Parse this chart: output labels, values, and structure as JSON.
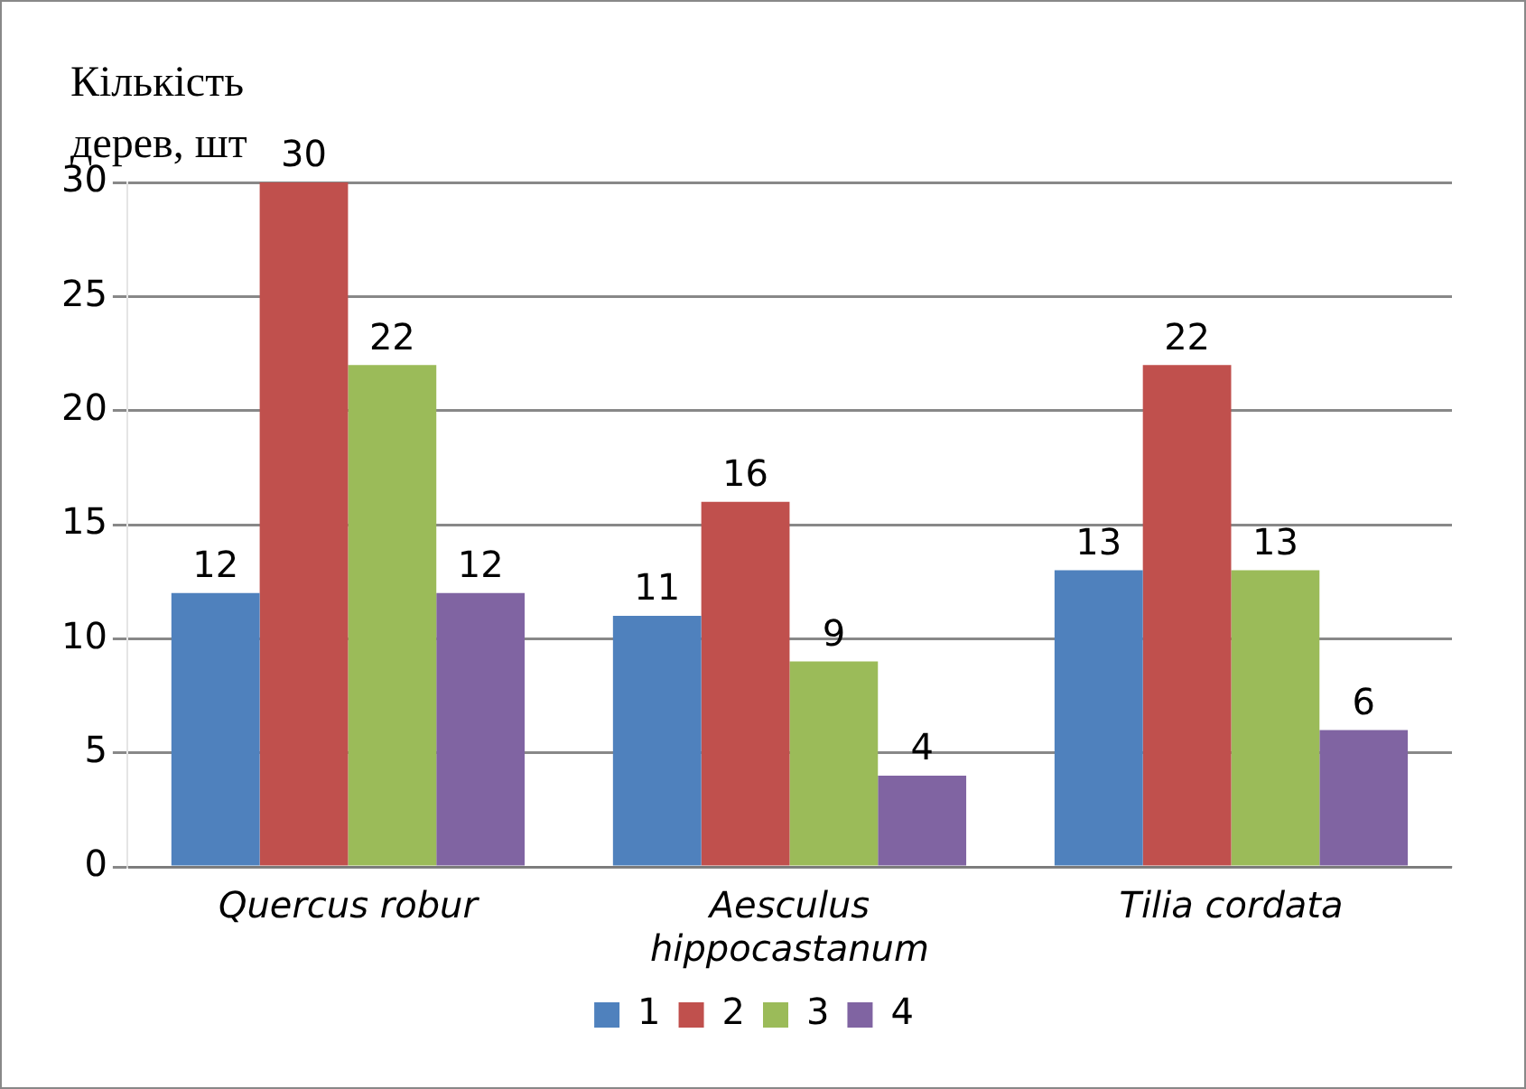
{
  "chart_data": {
    "type": "bar",
    "ylabel": "Кількість дерев, шт",
    "categories": [
      "Quercus robur",
      "Aesculus hippocastanum",
      "Tilia cordata"
    ],
    "series": [
      {
        "name": "1",
        "color": "#4f81bd",
        "values": [
          12,
          11,
          13
        ]
      },
      {
        "name": "2",
        "color": "#c0504d",
        "values": [
          30,
          16,
          22
        ]
      },
      {
        "name": "3",
        "color": "#9bbb59",
        "values": [
          22,
          9,
          13
        ]
      },
      {
        "name": "4",
        "color": "#8064a2",
        "values": [
          12,
          4,
          6
        ]
      }
    ],
    "ylim": [
      0,
      30
    ],
    "yticks": [
      0,
      5,
      10,
      15,
      20,
      25,
      30
    ],
    "grid": "y",
    "legend": "bottom",
    "data_labels": true
  }
}
